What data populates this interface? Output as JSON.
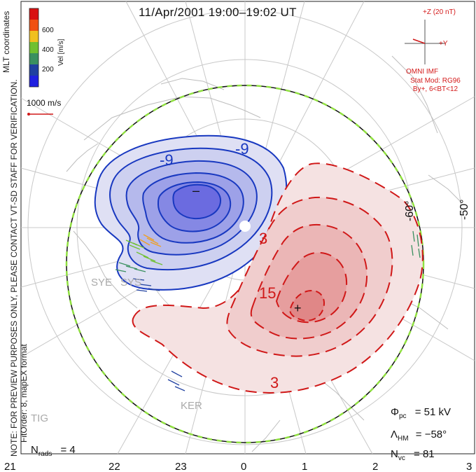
{
  "title": "11/Apr/2001 19:00–19:02 UT",
  "colorbar": {
    "label": "Vel [m/s]",
    "ticks": [
      "600",
      "400",
      "200"
    ],
    "colors": [
      "#d81010",
      "#f08010",
      "#f0c020",
      "#70c030",
      "#3a9060",
      "#2040a0",
      "#2020e0"
    ]
  },
  "reference_vector": "1000 m/s",
  "imf": {
    "bz_label": "+Z (20 nT)",
    "by_label": "+Y",
    "source": "OMNI IMF",
    "stat_mod": "Stat Mod: RG96",
    "stat_cond": "By+, 6<BT<12"
  },
  "notes": {
    "preview": "NOTE: FOR PREVIEW PURPOSES ONLY, PLEASE CONTACT VT-SD STAFF FOR VERIFICATION.",
    "fit_order": "FitOrder: 8, mapEX format",
    "coordinates": "MLT coordinates"
  },
  "latitude_labels": {
    "right": "-50°",
    "inner": "-60°"
  },
  "mlt_axis": [
    "21",
    "22",
    "23",
    "0",
    "1",
    "2",
    "3"
  ],
  "stations": [
    "SYE",
    "SYS",
    "KER",
    "TIG"
  ],
  "contour_labels": {
    "neg_top": "-9",
    "neg_top2": "-9",
    "pos_mid": "3",
    "pos_core": "15",
    "pos_bottom": "3"
  },
  "extrema_marks": {
    "min": "–",
    "max": "+"
  },
  "stats": {
    "phi_pc_label": "Φ",
    "phi_pc_sub": "pc",
    "phi_pc_value": "= 51 kV",
    "lambda_label": "Λ",
    "lambda_sub": "HM",
    "lambda_value": "= −58°",
    "nvc_label": "N",
    "nvc_sub": "vc",
    "nvc_value": "= 81",
    "nrads_label": "N",
    "nrads_sub": "rads",
    "nrads_value": "= 4"
  }
}
